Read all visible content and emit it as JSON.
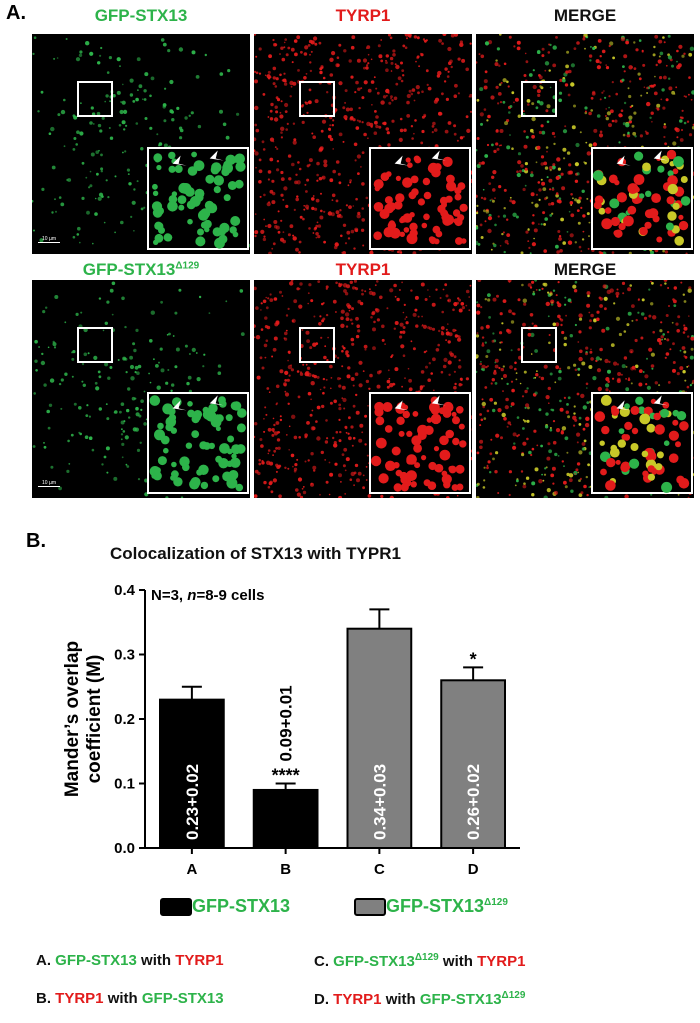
{
  "panel_a": {
    "letter": "A.",
    "rows": [
      {
        "heads": [
          {
            "text": "GFP-STX13",
            "sup": "",
            "color": "green"
          },
          {
            "text": "TYRP1",
            "sup": "",
            "color": "red"
          },
          {
            "text": "MERGE",
            "sup": "",
            "color": "black"
          }
        ],
        "scale_bar": "10 µm"
      },
      {
        "heads": [
          {
            "text": "GFP-STX13",
            "sup": "Δ129",
            "color": "green"
          },
          {
            "text": "TYRP1",
            "sup": "",
            "color": "red"
          },
          {
            "text": "MERGE",
            "sup": "",
            "color": "black"
          }
        ],
        "scale_bar": "10 µm"
      }
    ],
    "colors": {
      "green": "#2db34a",
      "red": "#e21b1b",
      "merge": "#c8c828"
    }
  },
  "panel_b": {
    "letter": "B."
  },
  "chart_data": {
    "type": "bar",
    "title": "Colocalization of STX13 with TYPR1",
    "annotation": {
      "n_prefix": "N=3, ",
      "n_italic": "n",
      "n_suffix": "=8-9 cells"
    },
    "ylabel_line1": "Mander’s overlap",
    "ylabel_line2": "coefficient (M)",
    "ylim": [
      0.0,
      0.4
    ],
    "yticks": [
      "0.0",
      "0.1",
      "0.2",
      "0.3",
      "0.4"
    ],
    "categories": [
      "A",
      "B",
      "C",
      "D"
    ],
    "values": [
      0.23,
      0.09,
      0.34,
      0.26
    ],
    "errors": [
      0.02,
      0.01,
      0.03,
      0.02
    ],
    "bar_labels": [
      "0.23+0.02",
      "0.09+0.01",
      "0.34+0.03",
      "0.26+0.02"
    ],
    "significance": [
      "",
      "****",
      "",
      "*"
    ],
    "bar_colors": [
      "#000000",
      "#000000",
      "#808080",
      "#808080"
    ],
    "legend": [
      {
        "text": "GFP-STX13",
        "sup": "",
        "color": "#000000"
      },
      {
        "text": "GFP-STX13",
        "sup": "Δ129",
        "color": "#808080"
      }
    ],
    "grid": false
  },
  "footnotes": [
    {
      "prefix": "A. ",
      "p1": "GFP-STX13",
      "p1_sup": "",
      "p1_color": "green",
      "mid": " with ",
      "p2": "TYRP1",
      "p2_sup": "",
      "p2_color": "red"
    },
    {
      "prefix": "C. ",
      "p1": "GFP-STX13",
      "p1_sup": "Δ129",
      "p1_color": "green",
      "mid": " with ",
      "p2": "TYRP1",
      "p2_sup": "",
      "p2_color": "red"
    },
    {
      "prefix": "B. ",
      "p1": "TYRP1",
      "p1_sup": "",
      "p1_color": "red",
      "mid": " with ",
      "p2": "GFP-STX13",
      "p2_sup": "",
      "p2_color": "green"
    },
    {
      "prefix": "D. ",
      "p1": "TYRP1",
      "p1_sup": "",
      "p1_color": "red",
      "mid": " with ",
      "p2": "GFP-STX13",
      "p2_sup": "Δ129",
      "p2_color": "green"
    }
  ]
}
